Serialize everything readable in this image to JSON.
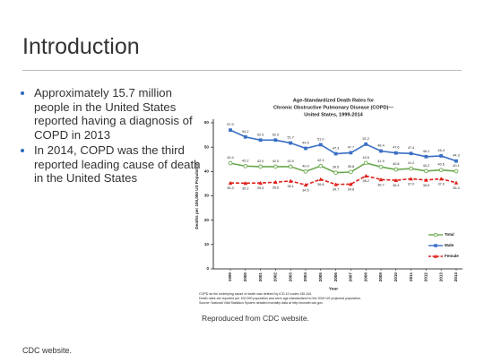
{
  "slide": {
    "title": "Introduction",
    "bullets": [
      "Approximately 15.7 million people in the United States reported having a diagnosis of COPD in 2013",
      "In 2014, COPD was the third reported leading cause of death in the United States"
    ],
    "caption": "Reproduced from CDC website.",
    "source": "CDC website."
  },
  "chart_data": {
    "type": "line",
    "title": [
      "Age-Standardized Death Rates for",
      "Chronic Obstructive Pulmonary Disease (COPD)—",
      "United States, 1999-2014"
    ],
    "x_label": "Year",
    "y_label": "Deaths per 100,000 US Population",
    "notes": [
      "COPD as the underlying cause of death was defined by ICD-10 codes J40-J44.",
      "Death rates are reported per 100,000 population and were age-standardized to the 2000 US projected population.",
      "Source: National Vital Statistics System detailed mortality data at http://wonder.cdc.gov."
    ],
    "categories": [
      "1999",
      "2000",
      "2001",
      "2002",
      "2003",
      "2004",
      "2005",
      "2006",
      "2007",
      "2008",
      "2009",
      "2010",
      "2011",
      "2012",
      "2013",
      "2014"
    ],
    "ylim": [
      0,
      60
    ],
    "yticks": [
      0,
      10,
      20,
      30,
      40,
      50,
      60
    ],
    "series": [
      {
        "name": "Total",
        "color": "#6aa84f",
        "marker": "circle",
        "dash": false,
        "label_side": "above",
        "values": [
          43.4,
          42.2,
          42.0,
          42.0,
          42.0,
          40.0,
          42.3,
          39.5,
          39.8,
          43.5,
          41.9,
          40.8,
          41.2,
          40.2,
          40.6,
          40.1
        ],
        "value_labels": [
          "43.4",
          "42.2",
          "42.0",
          "42.0",
          "42.0",
          "40.0",
          "42.3",
          "39.5",
          "39.8",
          "43.5",
          "41.9",
          "40.8",
          "41.2",
          "40.2",
          "40.6",
          "40.1"
        ]
      },
      {
        "name": "Male",
        "color": "#3a6fc4",
        "marker": "square",
        "dash": false,
        "label_side": "above",
        "values": [
          57.0,
          54.2,
          52.9,
          52.9,
          51.7,
          49.5,
          51.0,
          47.3,
          47.7,
          51.2,
          48.4,
          47.6,
          47.4,
          46.1,
          46.4,
          44.3
        ],
        "value_labels": [
          "57.0",
          "54.2",
          "52.9",
          "52.9",
          "51.7",
          "49.5",
          "51.0",
          "47.3",
          "47.7",
          "51.2",
          "48.4",
          "47.6",
          "47.4",
          "46.1",
          "46.4",
          "44.3"
        ]
      },
      {
        "name": "Female",
        "color": "#e0201b",
        "marker": "triangle",
        "dash": true,
        "label_side": "below",
        "values": [
          35.3,
          35.2,
          35.3,
          35.6,
          36.1,
          34.5,
          36.8,
          34.7,
          34.8,
          38.2,
          36.7,
          36.4,
          37.0,
          36.5,
          37.0,
          35.4
        ],
        "value_labels": [
          "35.3",
          "35.2",
          "35.3",
          "35.6",
          "36.1",
          "34.5",
          "36.8",
          "34.7",
          "34.8",
          "38.2",
          "36.7",
          "36.4",
          "37.0",
          "36.5",
          "37.0",
          "35.4"
        ]
      }
    ]
  }
}
